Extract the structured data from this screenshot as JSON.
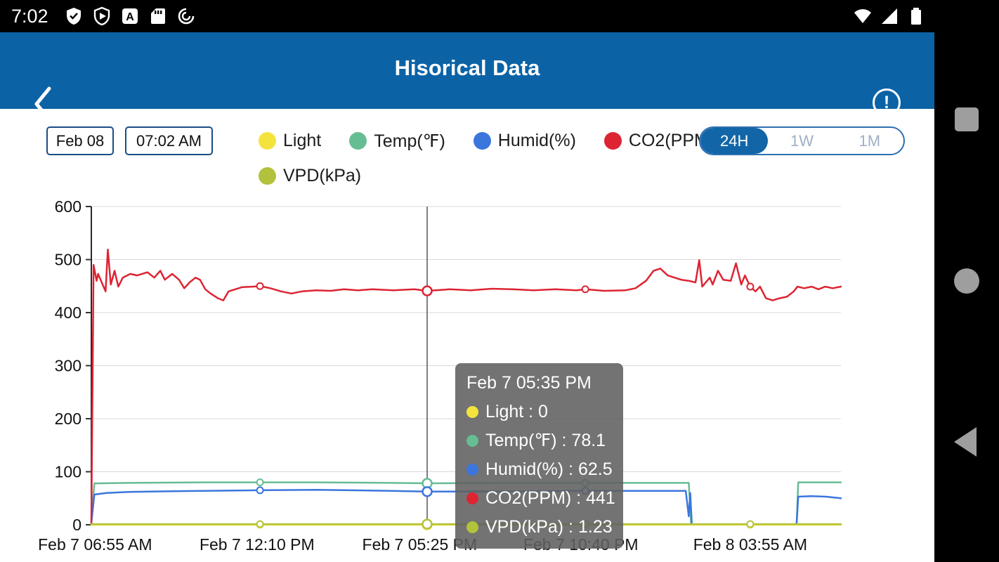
{
  "status_bar": {
    "time": "7:02",
    "icons_left": [
      "shield-check",
      "play-protect",
      "a-app",
      "sd-card",
      "data-saver"
    ],
    "icons_right": [
      "wifi",
      "signal",
      "battery"
    ]
  },
  "header": {
    "title": "Hisorical Data"
  },
  "controls": {
    "date": "Feb 08",
    "time": "07:02 AM"
  },
  "range_switch": {
    "options": [
      "24H",
      "1W",
      "1M"
    ],
    "selected": "24H"
  },
  "tooltip": {
    "title": "Feb 7 05:35 PM",
    "rows": [
      {
        "text": "Light : 0"
      },
      {
        "text": "Temp(℉) : 78.1"
      },
      {
        "text": "Humid(%) : 62.5"
      },
      {
        "text": "CO2(PPM) : 441"
      },
      {
        "text": "VPD(kPa) : 1.23"
      }
    ]
  },
  "chart_data": {
    "type": "line",
    "title": "",
    "xlabel": "",
    "ylabel": "",
    "ylim": [
      0,
      600
    ],
    "y_ticks": [
      0,
      100,
      200,
      300,
      400,
      500,
      600
    ],
    "grid": true,
    "legend_position": "top",
    "x_ticks": [
      {
        "t": 0.005,
        "label": "Feb 7 06:55 AM"
      },
      {
        "t": 0.221,
        "label": "Feb 7 12:10 PM"
      },
      {
        "t": 0.438,
        "label": "Feb 7 05:25 PM"
      },
      {
        "t": 0.653,
        "label": "Feb 7 10:40 PM"
      },
      {
        "t": 0.879,
        "label": "Feb 8 03:55 AM"
      }
    ],
    "cursor": {
      "t": 0.448,
      "label": "Feb 7 05:35 PM"
    },
    "series": [
      {
        "name": "Light",
        "color": "#f5e33d",
        "cursor_value": 0,
        "markers_t": [
          0.225,
          0.448,
          0.659,
          0.879
        ],
        "segments": [
          [
            [
              0,
              0
            ],
            [
              1,
              0
            ]
          ]
        ]
      },
      {
        "name": "Temp(℉)",
        "color": "#66bd94",
        "cursor_value": 78.1,
        "markers_t": [
          0.225,
          0.448,
          0.659
        ],
        "segments": [
          [
            [
              0,
              3
            ],
            [
              0.004,
              78
            ],
            [
              0.05,
              79
            ],
            [
              0.15,
              80
            ],
            [
              0.225,
              80
            ],
            [
              0.3,
              80
            ],
            [
              0.4,
              79
            ],
            [
              0.448,
              78.1
            ],
            [
              0.55,
              79
            ],
            [
              0.659,
              79
            ],
            [
              0.75,
              79
            ],
            [
              0.797,
              79
            ],
            [
              0.8,
              3
            ]
          ],
          [
            [
              0.941,
              3
            ],
            [
              0.943,
              80
            ],
            [
              0.97,
              80
            ],
            [
              1,
              80
            ]
          ]
        ]
      },
      {
        "name": "Humid(%)",
        "color": "#3b76dd",
        "cursor_value": 62.5,
        "markers_t": [
          0.225,
          0.448,
          0.659
        ],
        "segments": [
          [
            [
              0,
              3
            ],
            [
              0.004,
              57
            ],
            [
              0.02,
              60
            ],
            [
              0.05,
              62
            ],
            [
              0.1,
              63
            ],
            [
              0.15,
              64
            ],
            [
              0.225,
              65
            ],
            [
              0.3,
              66
            ],
            [
              0.4,
              64
            ],
            [
              0.448,
              62.5
            ],
            [
              0.55,
              63
            ],
            [
              0.659,
              64
            ],
            [
              0.75,
              64
            ],
            [
              0.793,
              64
            ],
            [
              0.797,
              16
            ],
            [
              0.799,
              60
            ],
            [
              0.801,
              3
            ]
          ],
          [
            [
              0.941,
              3
            ],
            [
              0.943,
              53
            ],
            [
              0.96,
              54
            ],
            [
              0.98,
              53
            ],
            [
              1,
              50
            ]
          ]
        ]
      },
      {
        "name": "CO2(PPM)",
        "color": "#dd2433",
        "cursor_value": 441,
        "markers_t": [
          0.225,
          0.448,
          0.659,
          0.879
        ],
        "segments": [
          [
            [
              0,
              3
            ],
            [
              0.003,
              490
            ],
            [
              0.007,
              460
            ],
            [
              0.009,
              473
            ],
            [
              0.019,
              440
            ],
            [
              0.022,
              519
            ],
            [
              0.026,
              453
            ],
            [
              0.031,
              479
            ],
            [
              0.036,
              449
            ],
            [
              0.042,
              466
            ],
            [
              0.052,
              473
            ],
            [
              0.061,
              470
            ],
            [
              0.075,
              476
            ],
            [
              0.084,
              466
            ],
            [
              0.092,
              479
            ],
            [
              0.098,
              462
            ],
            [
              0.108,
              473
            ],
            [
              0.117,
              462
            ],
            [
              0.124,
              446
            ],
            [
              0.131,
              457
            ],
            [
              0.139,
              466
            ],
            [
              0.145,
              462
            ],
            [
              0.152,
              444
            ],
            [
              0.159,
              436
            ],
            [
              0.169,
              427
            ],
            [
              0.176,
              423
            ],
            [
              0.183,
              440
            ],
            [
              0.192,
              444
            ],
            [
              0.201,
              448
            ],
            [
              0.216,
              449
            ],
            [
              0.225,
              450
            ],
            [
              0.239,
              446
            ],
            [
              0.253,
              440
            ],
            [
              0.267,
              436
            ],
            [
              0.281,
              440
            ],
            [
              0.3,
              442
            ],
            [
              0.319,
              441
            ],
            [
              0.337,
              444
            ],
            [
              0.356,
              442
            ],
            [
              0.375,
              444
            ],
            [
              0.403,
              442
            ],
            [
              0.431,
              444
            ],
            [
              0.448,
              441
            ],
            [
              0.478,
              444
            ],
            [
              0.506,
              442
            ],
            [
              0.534,
              445
            ],
            [
              0.562,
              444
            ],
            [
              0.59,
              442
            ],
            [
              0.619,
              444
            ],
            [
              0.647,
              442
            ],
            [
              0.659,
              444
            ],
            [
              0.684,
              441
            ],
            [
              0.712,
              442
            ],
            [
              0.726,
              446
            ],
            [
              0.74,
              460
            ],
            [
              0.75,
              479
            ],
            [
              0.759,
              483
            ],
            [
              0.769,
              470
            ],
            [
              0.778,
              466
            ],
            [
              0.787,
              462
            ],
            [
              0.797,
              460
            ],
            [
              0.806,
              457
            ],
            [
              0.811,
              499
            ],
            [
              0.815,
              449
            ],
            [
              0.825,
              466
            ],
            [
              0.829,
              453
            ],
            [
              0.836,
              479
            ],
            [
              0.843,
              462
            ],
            [
              0.853,
              460
            ],
            [
              0.86,
              493
            ],
            [
              0.867,
              453
            ],
            [
              0.872,
              470
            ],
            [
              0.879,
              449
            ],
            [
              0.886,
              440
            ],
            [
              0.892,
              449
            ],
            [
              0.9,
              427
            ],
            [
              0.909,
              423
            ],
            [
              0.918,
              427
            ],
            [
              0.928,
              430
            ],
            [
              0.937,
              440
            ],
            [
              0.942,
              449
            ],
            [
              0.951,
              446
            ],
            [
              0.961,
              449
            ],
            [
              0.97,
              444
            ],
            [
              0.979,
              449
            ],
            [
              0.989,
              446
            ],
            [
              1,
              449
            ]
          ]
        ]
      },
      {
        "name": "VPD(kPa)",
        "color": "#b2c23c",
        "cursor_value": 1.23,
        "markers_t": [
          0.225,
          0.448,
          0.659,
          0.879
        ],
        "segments": [
          [
            [
              0,
              1.23
            ],
            [
              1,
              1.23
            ]
          ]
        ]
      }
    ]
  }
}
